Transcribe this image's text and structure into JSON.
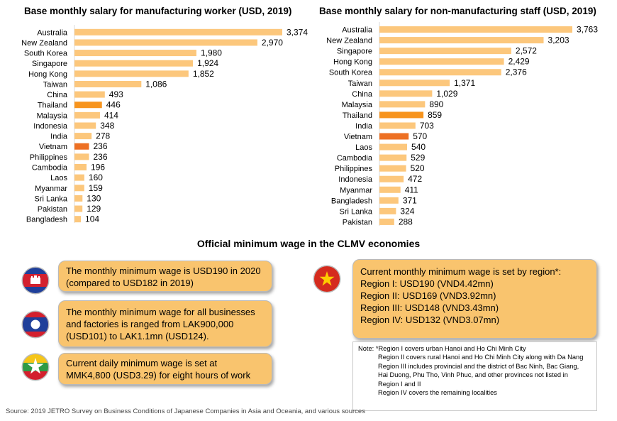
{
  "chart_data": [
    {
      "type": "bar",
      "orientation": "horizontal",
      "title": "Base monthly salary for manufacturing worker (USD, 2019)",
      "categories": [
        "Australia",
        "New Zealand",
        "South Korea",
        "Singapore",
        "Hong Kong",
        "Taiwan",
        "China",
        "Thailand",
        "Malaysia",
        "Indonesia",
        "India",
        "Vietnam",
        "Philippines",
        "Cambodia",
        "Laos",
        "Myanmar",
        "Sri Lanka",
        "Pakistan",
        "Bangladesh"
      ],
      "values": [
        3374,
        2970,
        1980,
        1924,
        1852,
        1086,
        493,
        446,
        414,
        348,
        278,
        236,
        236,
        196,
        160,
        159,
        130,
        129,
        104
      ],
      "labels": [
        "3,374",
        "2,970",
        "1,980",
        "1,924",
        "1,852",
        "1,086",
        "493",
        "446",
        "414",
        "348",
        "278",
        "236",
        "236",
        "196",
        "160",
        "159",
        "130",
        "129",
        "104"
      ],
      "highlight": {
        "Thailand": "#f7941d",
        "Vietnam": "#ed7023"
      },
      "bar_color": "#fcc77c",
      "xlim": [
        0,
        3374
      ]
    },
    {
      "type": "bar",
      "orientation": "horizontal",
      "title": "Base monthly salary for non-manufacturing staff (USD, 2019)",
      "categories": [
        "Australia",
        "New Zealand",
        "Singapore",
        "Hong Kong",
        "South Korea",
        "Taiwan",
        "China",
        "Malaysia",
        "Thailand",
        "India",
        "Vietnam",
        "Laos",
        "Cambodia",
        "Philippines",
        "Indonesia",
        "Myanmar",
        "Bangladesh",
        "Sri Lanka",
        "Pakistan"
      ],
      "values": [
        3763,
        3203,
        2572,
        2429,
        2376,
        1371,
        1029,
        890,
        859,
        703,
        570,
        540,
        529,
        520,
        472,
        411,
        371,
        324,
        288
      ],
      "labels": [
        "3,763",
        "3,203",
        "2,572",
        "2,429",
        "2,376",
        "1,371",
        "1,029",
        "890",
        "859",
        "703",
        "570",
        "540",
        "529",
        "520",
        "472",
        "411",
        "371",
        "324",
        "288"
      ],
      "highlight": {
        "Thailand": "#f7941d",
        "Vietnam": "#ed7023"
      },
      "bar_color": "#fcc77c",
      "xlim": [
        0,
        3763
      ]
    }
  ],
  "section_title": "Official minimum wage in the CLMV economies",
  "boxes": {
    "cambodia": [
      "The monthly minimum wage is USD190 in 2020",
      "(compared to USD182 in 2019)"
    ],
    "laos": [
      "The monthly minimum wage for all businesses",
      "and factories is ranged from LAK900,000",
      "(USD101) to LAK1.1mn (USD124)."
    ],
    "myanmar": [
      "Current daily minimum wage is set at",
      "MMK4,800 (USD3.29) for eight hours of work"
    ],
    "vietnam": [
      "Current monthly minimum wage is set by region*:",
      "Region I:   USD190 (VND4.42mn)",
      "Region II:  USD169 (VND3.92mn)",
      "Region III: USD148 (VND3.43mn)",
      "Region IV: USD132 (VND3.07mn)"
    ]
  },
  "note": {
    "label": "Note:",
    "lines": [
      "*Region I covers urban Hanoi and Ho Chi Minh City",
      "Region II covers rural Hanoi and Ho Chi Minh City along with Da Nang",
      "Region III includes provincial and the district of Bac Ninh, Bac Giang,",
      "Hai Duong, Phu Tho, Vinh Phuc, and other provinces not listed in",
      "Region I and II",
      "Region IV covers the remaining  localities"
    ]
  },
  "source": "Source: 2019 JETRO Survey on Business Conditions of Japanese Companies in Asia and Oceania, and various sources",
  "flags": {
    "cambodia": "cambodia-flag-icon",
    "laos": "laos-flag-icon",
    "myanmar": "myanmar-flag-icon",
    "vietnam": "vietnam-flag-icon"
  }
}
